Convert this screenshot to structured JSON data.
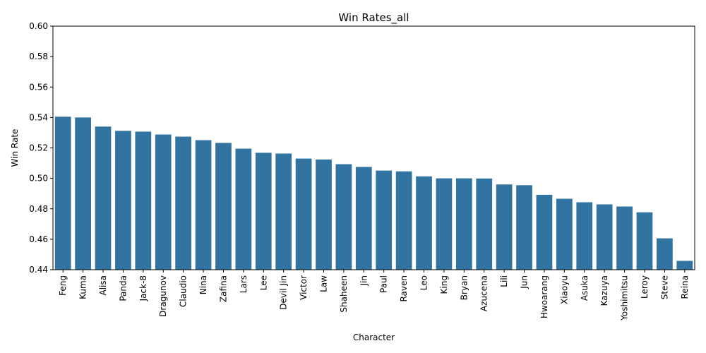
{
  "chart_data": {
    "type": "bar",
    "title": "Win Rates_all",
    "xlabel": "Character",
    "ylabel": "Win Rate",
    "ylim": [
      0.44,
      0.6
    ],
    "yticks": [
      "0.44",
      "0.46",
      "0.48",
      "0.50",
      "0.52",
      "0.54",
      "0.56",
      "0.58",
      "0.60"
    ],
    "grid": false,
    "bar_color": "#3274a1",
    "categories": [
      "Feng",
      "Kuma",
      "Alisa",
      "Panda",
      "Jack-8",
      "Dragunov",
      "Claudio",
      "Nina",
      "Zafina",
      "Lars",
      "Lee",
      "Devil Jin",
      "Victor",
      "Law",
      "Shaheen",
      "Jin",
      "Paul",
      "Raven",
      "Leo",
      "King",
      "Bryan",
      "Azucena",
      "Lili",
      "Jun",
      "Hwoarang",
      "Xiaoyu",
      "Asuka",
      "Kazuya",
      "Yoshimitsu",
      "Leroy",
      "Steve",
      "Reina"
    ],
    "values": [
      0.5405,
      0.54,
      0.534,
      0.5312,
      0.5307,
      0.5288,
      0.5274,
      0.5251,
      0.5233,
      0.5195,
      0.5168,
      0.5163,
      0.513,
      0.5124,
      0.5093,
      0.5075,
      0.5051,
      0.5046,
      0.5013,
      0.5,
      0.5,
      0.4999,
      0.496,
      0.4955,
      0.4892,
      0.4866,
      0.4843,
      0.4829,
      0.4815,
      0.4777,
      0.4606,
      0.4458
    ]
  }
}
